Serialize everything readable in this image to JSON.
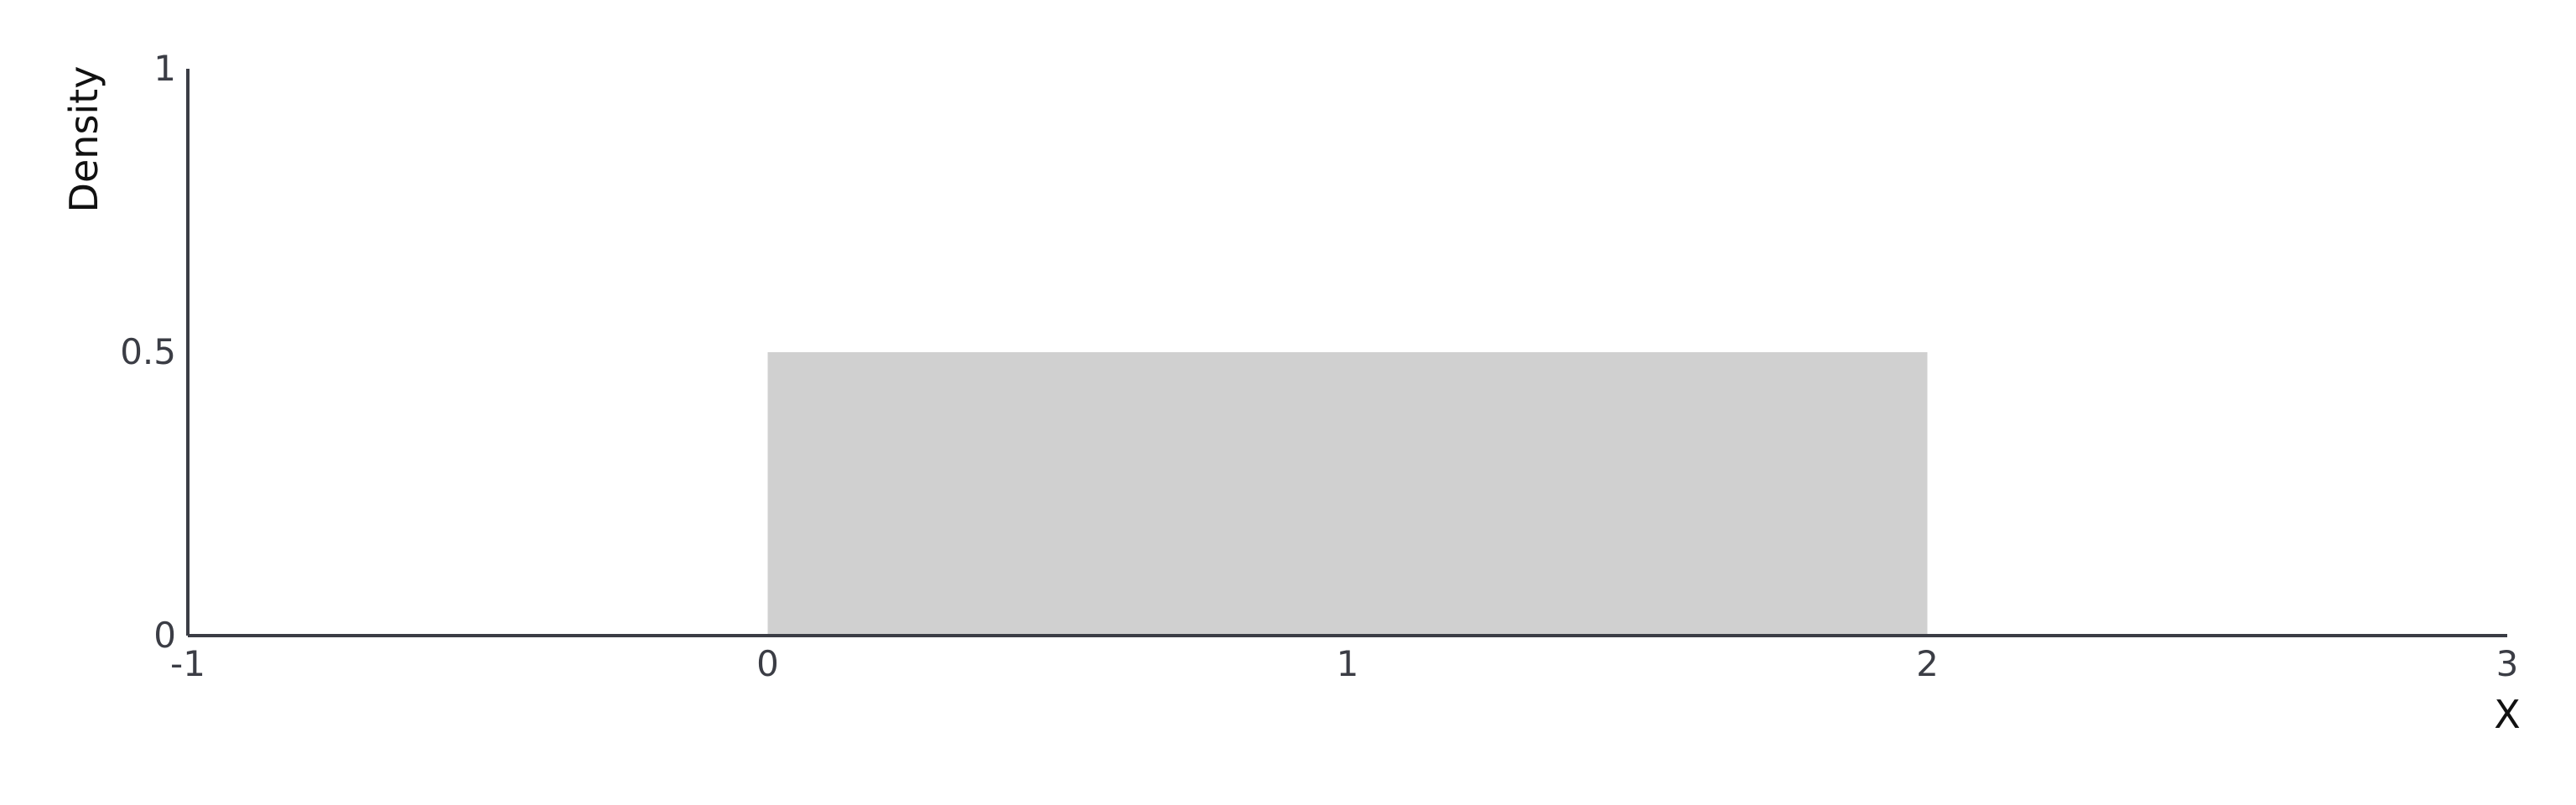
{
  "chart_data": {
    "type": "area",
    "title": "",
    "xlabel": "X",
    "ylabel": "Density",
    "xlim": [
      -1,
      3
    ],
    "ylim": [
      0,
      1
    ],
    "x_ticks": [
      -1,
      0,
      1,
      2,
      3
    ],
    "y_ticks": [
      0,
      0.5,
      1
    ],
    "x_tick_labels": [
      "-1",
      "0",
      "1",
      "2",
      "3"
    ],
    "y_tick_labels": [
      "0",
      "0.5",
      "1"
    ],
    "grid": false,
    "series": [
      {
        "x": [
          0,
          2
        ],
        "y": [
          0.5,
          0.5
        ],
        "color": "#d0d0d0"
      }
    ],
    "axis_color": "#3b3d45"
  }
}
